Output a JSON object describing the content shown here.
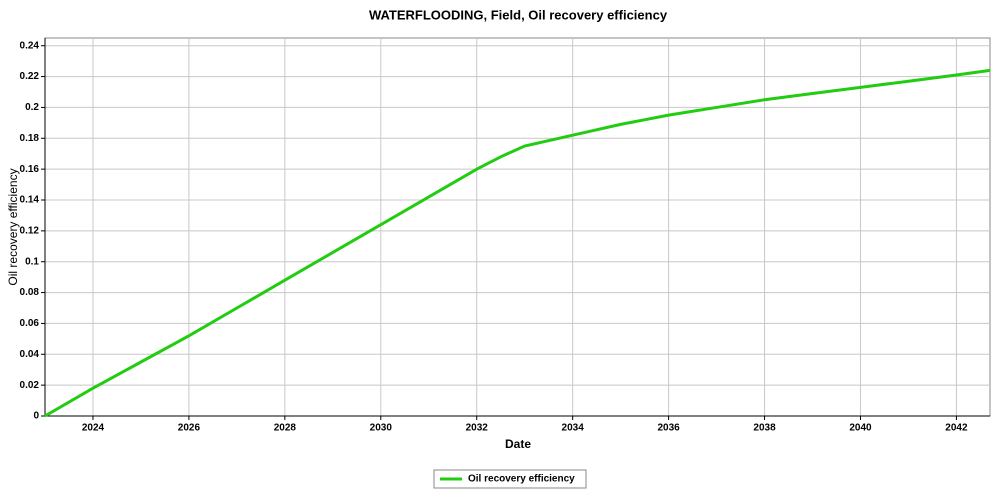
{
  "chart_data": {
    "type": "line",
    "title": "WATERFLOODING, Field, Oil recovery efficiency",
    "xlabel": "Date",
    "ylabel": "Oil recovery efficiency",
    "x": [
      2023.0,
      2024,
      2025,
      2026,
      2027,
      2028,
      2029,
      2030,
      2031,
      2032,
      2032.5,
      2033,
      2034,
      2035,
      2036,
      2037,
      2038,
      2039,
      2040,
      2041,
      2042,
      2042.7
    ],
    "series": [
      {
        "name": "Oil recovery efficiency",
        "color": "#22cc11",
        "values": [
          0,
          0.018,
          0.035,
          0.052,
          0.07,
          0.088,
          0.106,
          0.124,
          0.142,
          0.16,
          0.168,
          0.175,
          0.182,
          0.189,
          0.195,
          0.2,
          0.205,
          0.209,
          0.213,
          0.217,
          0.221,
          0.224
        ]
      }
    ],
    "xlim": [
      2023.0,
      2042.7
    ],
    "xticks": [
      2024,
      2026,
      2028,
      2030,
      2032,
      2034,
      2036,
      2038,
      2040,
      2042
    ],
    "ylim": [
      0,
      0.245
    ],
    "yticks": [
      0,
      0.02,
      0.04,
      0.06,
      0.08,
      0.1,
      0.12,
      0.14,
      0.16,
      0.18,
      0.2,
      0.22,
      0.24
    ],
    "grid": true,
    "legend": "bottom"
  }
}
